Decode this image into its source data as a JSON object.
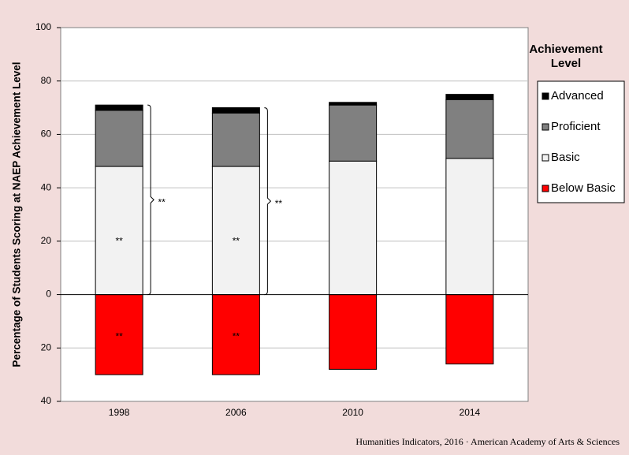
{
  "chart_data": {
    "type": "bar",
    "y_label": "Percentage of Students Scoring at NAEP Achievement Level",
    "legend_title": "Achievement Level",
    "footer": "Humanities Indicators, 2016 · American Academy of Arts & Sciences",
    "categories": [
      "1998",
      "2006",
      "2010",
      "2014"
    ],
    "series": [
      {
        "name": "Advanced",
        "color": "#000000",
        "values": [
          2,
          2,
          1,
          2
        ]
      },
      {
        "name": "Proficient",
        "color": "#808080",
        "values": [
          21,
          20,
          21,
          22
        ]
      },
      {
        "name": "Basic",
        "color": "#f2f2f2",
        "values": [
          48,
          48,
          50,
          51
        ]
      },
      {
        "name": "Below Basic",
        "color": "#ff0000",
        "values": [
          -30,
          -30,
          -28,
          -26
        ]
      }
    ],
    "annotations": [
      "**",
      "**",
      "**",
      "**",
      "**",
      "**"
    ],
    "ylim": [
      -40,
      100
    ],
    "yticks": [
      {
        "value": -40,
        "label": "40"
      },
      {
        "value": -20,
        "label": "20"
      },
      0,
      20,
      40,
      60,
      80,
      100
    ],
    "grid": true,
    "legend": "right"
  }
}
